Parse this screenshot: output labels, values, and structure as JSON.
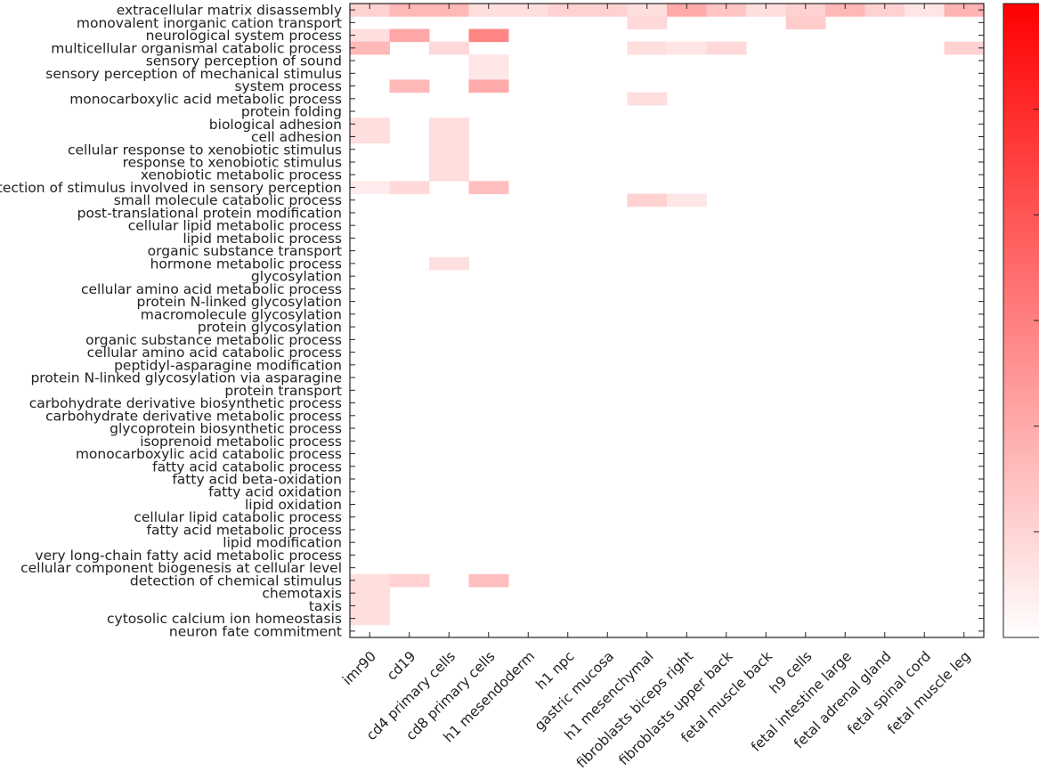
{
  "chart_data": {
    "type": "heatmap",
    "title": "",
    "xlabel": "",
    "ylabel": "",
    "colormap": {
      "low": "#ffffff",
      "high": "#ff0000"
    },
    "value_range": [
      0,
      1
    ],
    "colorbar": {
      "tick_count": 5,
      "tick_labels": []
    },
    "columns": [
      "imr90",
      "cd19",
      "cd4 primary cells",
      "cd8 primary cells",
      "h1 mesendoderm",
      "h1 npc",
      "gastric mucosa",
      "h1 mesenchymal",
      "fibroblasts biceps right",
      "fibroblasts upper back",
      "fetal muscle back",
      "h9 cells",
      "fetal intestine large",
      "fetal adrenal gland",
      "fetal spinal cord",
      "fetal muscle leg"
    ],
    "rows": [
      "extracellular matrix disassembly",
      "monovalent inorganic cation transport",
      "neurological system process",
      "multicellular organismal catabolic process",
      "sensory perception of sound",
      "sensory perception of mechanical stimulus",
      "system process",
      "monocarboxylic acid metabolic process",
      "protein folding",
      "biological adhesion",
      "cell adhesion",
      "cellular response to xenobiotic stimulus",
      "response to xenobiotic stimulus",
      "xenobiotic metabolic process",
      "detection of stimulus involved in sensory perception",
      "small molecule catabolic process",
      "post-translational protein modification",
      "cellular lipid metabolic process",
      "lipid metabolic process",
      "organic substance transport",
      "hormone metabolic process",
      "glycosylation",
      "cellular amino acid metabolic process",
      "protein N-linked glycosylation",
      "macromolecule glycosylation",
      "protein glycosylation",
      "organic substance metabolic process",
      "cellular amino acid catabolic process",
      "peptidyl-asparagine modification",
      "protein N-linked glycosylation via asparagine",
      "protein transport",
      "carbohydrate derivative biosynthetic process",
      "carbohydrate derivative metabolic process",
      "glycoprotein biosynthetic process",
      "isoprenoid metabolic process",
      "monocarboxylic acid catabolic process",
      "fatty acid catabolic process",
      "fatty acid beta-oxidation",
      "fatty acid oxidation",
      "lipid oxidation",
      "cellular lipid catabolic process",
      "fatty acid metabolic process",
      "lipid modification",
      "very long-chain fatty acid metabolic process",
      "cellular component biogenesis at cellular level",
      "detection of chemical stimulus",
      "chemotaxis",
      "taxis",
      "cytosolic calcium ion homeostasis",
      "neuron fate commitment"
    ],
    "values": [
      [
        0.18,
        0.28,
        0.28,
        0.13,
        0.13,
        0.18,
        0.18,
        0.13,
        0.33,
        0.23,
        0.13,
        0.18,
        0.28,
        0.18,
        0.1,
        0.3
      ],
      [
        0,
        0,
        0,
        0,
        0,
        0,
        0,
        0.15,
        0,
        0,
        0,
        0.2,
        0,
        0,
        0,
        0
      ],
      [
        0.13,
        0.35,
        0,
        0.48,
        0,
        0,
        0,
        0,
        0,
        0,
        0,
        0,
        0,
        0,
        0,
        0
      ],
      [
        0.28,
        0,
        0.15,
        0,
        0,
        0,
        0,
        0.13,
        0.1,
        0.15,
        0,
        0,
        0,
        0,
        0,
        0.18
      ],
      [
        0,
        0,
        0,
        0.1,
        0,
        0,
        0,
        0,
        0,
        0,
        0,
        0,
        0,
        0,
        0,
        0
      ],
      [
        0,
        0,
        0,
        0.1,
        0,
        0,
        0,
        0,
        0,
        0,
        0,
        0,
        0,
        0,
        0,
        0
      ],
      [
        0,
        0.28,
        0,
        0.33,
        0,
        0,
        0,
        0,
        0,
        0,
        0,
        0,
        0,
        0,
        0,
        0
      ],
      [
        0,
        0,
        0,
        0,
        0,
        0,
        0,
        0.13,
        0,
        0,
        0,
        0,
        0,
        0,
        0,
        0
      ],
      [
        0,
        0,
        0,
        0,
        0,
        0,
        0,
        0,
        0,
        0,
        0,
        0,
        0,
        0,
        0,
        0
      ],
      [
        0.13,
        0,
        0.13,
        0,
        0,
        0,
        0,
        0,
        0,
        0,
        0,
        0,
        0,
        0,
        0,
        0
      ],
      [
        0.13,
        0,
        0.13,
        0,
        0,
        0,
        0,
        0,
        0,
        0,
        0,
        0,
        0,
        0,
        0,
        0
      ],
      [
        0,
        0,
        0.13,
        0,
        0,
        0,
        0,
        0,
        0,
        0,
        0,
        0,
        0,
        0,
        0,
        0
      ],
      [
        0,
        0,
        0.13,
        0,
        0,
        0,
        0,
        0,
        0,
        0,
        0,
        0,
        0,
        0,
        0,
        0
      ],
      [
        0,
        0,
        0.13,
        0,
        0,
        0,
        0,
        0,
        0,
        0,
        0,
        0,
        0,
        0,
        0,
        0
      ],
      [
        0.08,
        0.15,
        0,
        0.25,
        0,
        0,
        0,
        0,
        0,
        0,
        0,
        0,
        0,
        0,
        0,
        0
      ],
      [
        0,
        0,
        0,
        0,
        0,
        0,
        0,
        0.18,
        0.1,
        0,
        0,
        0,
        0,
        0,
        0,
        0
      ],
      [
        0,
        0,
        0,
        0,
        0,
        0,
        0,
        0,
        0,
        0,
        0,
        0,
        0,
        0,
        0,
        0
      ],
      [
        0,
        0,
        0,
        0,
        0,
        0,
        0,
        0,
        0,
        0,
        0,
        0,
        0,
        0,
        0,
        0
      ],
      [
        0,
        0,
        0,
        0,
        0,
        0,
        0,
        0,
        0,
        0,
        0,
        0,
        0,
        0,
        0,
        0
      ],
      [
        0,
        0,
        0,
        0,
        0,
        0,
        0,
        0,
        0,
        0,
        0,
        0,
        0,
        0,
        0,
        0
      ],
      [
        0,
        0,
        0.12,
        0,
        0,
        0,
        0,
        0,
        0,
        0,
        0,
        0,
        0,
        0,
        0,
        0
      ],
      [
        0,
        0,
        0,
        0,
        0,
        0,
        0,
        0,
        0,
        0,
        0,
        0,
        0,
        0,
        0,
        0
      ],
      [
        0,
        0,
        0,
        0,
        0,
        0,
        0,
        0,
        0,
        0,
        0,
        0,
        0,
        0,
        0,
        0
      ],
      [
        0,
        0,
        0,
        0,
        0,
        0,
        0,
        0,
        0,
        0,
        0,
        0,
        0,
        0,
        0,
        0
      ],
      [
        0,
        0,
        0,
        0,
        0,
        0,
        0,
        0,
        0,
        0,
        0,
        0,
        0,
        0,
        0,
        0
      ],
      [
        0,
        0,
        0,
        0,
        0,
        0,
        0,
        0,
        0,
        0,
        0,
        0,
        0,
        0,
        0,
        0
      ],
      [
        0,
        0,
        0,
        0,
        0,
        0,
        0,
        0,
        0,
        0,
        0,
        0,
        0,
        0,
        0,
        0
      ],
      [
        0,
        0,
        0,
        0,
        0,
        0,
        0,
        0,
        0,
        0,
        0,
        0,
        0,
        0,
        0,
        0
      ],
      [
        0,
        0,
        0,
        0,
        0,
        0,
        0,
        0,
        0,
        0,
        0,
        0,
        0,
        0,
        0,
        0
      ],
      [
        0,
        0,
        0,
        0,
        0,
        0,
        0,
        0,
        0,
        0,
        0,
        0,
        0,
        0,
        0,
        0
      ],
      [
        0,
        0,
        0,
        0,
        0,
        0,
        0,
        0,
        0,
        0,
        0,
        0,
        0,
        0,
        0,
        0
      ],
      [
        0,
        0,
        0,
        0,
        0,
        0,
        0,
        0,
        0,
        0,
        0,
        0,
        0,
        0,
        0,
        0
      ],
      [
        0,
        0,
        0,
        0,
        0,
        0,
        0,
        0,
        0,
        0,
        0,
        0,
        0,
        0,
        0,
        0
      ],
      [
        0,
        0,
        0,
        0,
        0,
        0,
        0,
        0,
        0,
        0,
        0,
        0,
        0,
        0,
        0,
        0
      ],
      [
        0,
        0,
        0,
        0,
        0,
        0,
        0,
        0,
        0,
        0,
        0,
        0,
        0,
        0,
        0,
        0
      ],
      [
        0,
        0,
        0,
        0,
        0,
        0,
        0,
        0,
        0,
        0,
        0,
        0,
        0,
        0,
        0,
        0
      ],
      [
        0,
        0,
        0,
        0,
        0,
        0,
        0,
        0,
        0,
        0,
        0,
        0,
        0,
        0,
        0,
        0
      ],
      [
        0,
        0,
        0,
        0,
        0,
        0,
        0,
        0,
        0,
        0,
        0,
        0,
        0,
        0,
        0,
        0
      ],
      [
        0,
        0,
        0,
        0,
        0,
        0,
        0,
        0,
        0,
        0,
        0,
        0,
        0,
        0,
        0,
        0
      ],
      [
        0,
        0,
        0,
        0,
        0,
        0,
        0,
        0,
        0,
        0,
        0,
        0,
        0,
        0,
        0,
        0
      ],
      [
        0,
        0,
        0,
        0,
        0,
        0,
        0,
        0,
        0,
        0,
        0,
        0,
        0,
        0,
        0,
        0
      ],
      [
        0,
        0,
        0,
        0,
        0,
        0,
        0,
        0,
        0,
        0,
        0,
        0,
        0,
        0,
        0,
        0
      ],
      [
        0,
        0,
        0,
        0,
        0,
        0,
        0,
        0,
        0,
        0,
        0,
        0,
        0,
        0,
        0,
        0
      ],
      [
        0,
        0,
        0,
        0,
        0,
        0,
        0,
        0,
        0,
        0,
        0,
        0,
        0,
        0,
        0,
        0
      ],
      [
        0,
        0,
        0,
        0,
        0,
        0,
        0,
        0,
        0,
        0,
        0,
        0,
        0,
        0,
        0,
        0
      ],
      [
        0.13,
        0.18,
        0,
        0.25,
        0,
        0,
        0,
        0,
        0,
        0,
        0,
        0,
        0,
        0,
        0,
        0
      ],
      [
        0.13,
        0,
        0,
        0,
        0,
        0,
        0,
        0,
        0,
        0,
        0,
        0,
        0,
        0,
        0,
        0
      ],
      [
        0.13,
        0,
        0,
        0,
        0,
        0,
        0,
        0,
        0,
        0,
        0,
        0,
        0,
        0,
        0,
        0
      ],
      [
        0.13,
        0,
        0,
        0,
        0,
        0,
        0,
        0,
        0,
        0,
        0,
        0,
        0,
        0,
        0,
        0
      ],
      [
        0,
        0,
        0,
        0,
        0,
        0,
        0,
        0,
        0,
        0,
        0,
        0,
        0,
        0,
        0,
        0
      ]
    ]
  }
}
